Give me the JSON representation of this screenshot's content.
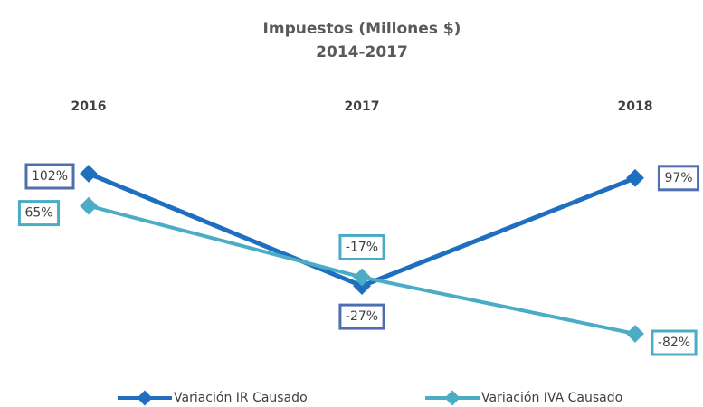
{
  "chart_data": {
    "type": "line",
    "title": "Impuestos (Millones $)",
    "subtitle": "2014-2017",
    "categories": [
      "2016",
      "2017",
      "2018"
    ],
    "series": [
      {
        "name": "Variación IR Causado",
        "color": "#1f6fc0",
        "values": [
          102,
          -27,
          97
        ],
        "value_labels": [
          "102%",
          "-27%",
          "97%"
        ]
      },
      {
        "name": "Variación IVA Causado",
        "color": "#4bacc6",
        "values": [
          65,
          -17,
          -82
        ],
        "value_labels": [
          "65%",
          "-17%",
          "-82%"
        ]
      }
    ]
  }
}
